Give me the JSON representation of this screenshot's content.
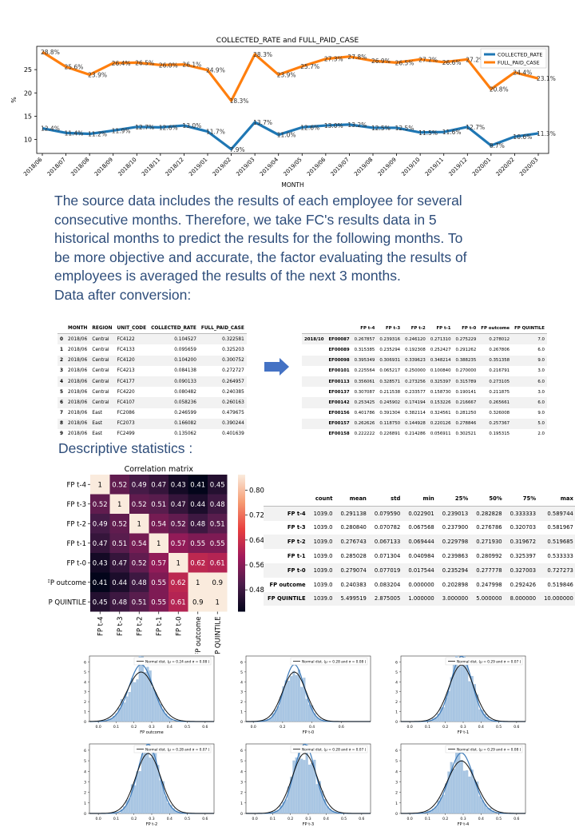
{
  "line_chart": {
    "chart_data": {
      "type": "line",
      "title": "COLLECTED_RATE and FULL_PAID_CASE",
      "xlabel": "MONTH",
      "ylabel": "%",
      "ylim": [
        7,
        30
      ],
      "yticks": [
        10,
        15,
        20,
        25
      ],
      "legend_placement": "top-right",
      "categories": [
        "2018/06",
        "2018/07",
        "2018/08",
        "2018/09",
        "2018/10",
        "2018/11",
        "2018/12",
        "2019/01",
        "2019/02",
        "2019/03",
        "2019/04",
        "2019/05",
        "2019/06",
        "2019/07",
        "2019/08",
        "2019/09",
        "2019/10",
        "2019/11",
        "2019/12",
        "2020/01",
        "2020/02",
        "2020/03"
      ],
      "series": [
        {
          "name": "COLLECTED_RATE",
          "color": "#1f77b4",
          "values": [
            12.4,
            11.4,
            11.2,
            11.9,
            12.7,
            12.6,
            13.0,
            11.7,
            7.9,
            13.7,
            11.0,
            12.6,
            13.0,
            13.2,
            12.5,
            12.5,
            11.5,
            11.6,
            12.7,
            8.7,
            10.6,
            11.3
          ],
          "labels": [
            "12.4%",
            "11.4%",
            "11.2%",
            "11.9%",
            "12.7%",
            "12.6%",
            "13.0%",
            "11.7%",
            "7.9%",
            "13.7%",
            "11.0%",
            "12.6%",
            "13.0%",
            "13.2%",
            "12.5%",
            "12.5%",
            "11.5%",
            "11.6%",
            "12.7%",
            "8.7%",
            "10.6%",
            "11.3%"
          ]
        },
        {
          "name": "FULL_PAID_CASE",
          "color": "#ff7f0e",
          "values": [
            28.8,
            25.6,
            23.9,
            26.4,
            26.5,
            26.0,
            26.1,
            24.9,
            18.3,
            28.3,
            23.9,
            25.7,
            27.3,
            27.8,
            26.9,
            26.5,
            27.2,
            26.6,
            27.2,
            20.8,
            24.4,
            23.1
          ],
          "labels": [
            "28.8%",
            "25.6%",
            "23.9%",
            "26.4%",
            "26.5%",
            "26.0%",
            "26.1%",
            "24.9%",
            "18.3%",
            "28.3%",
            "23.9%",
            "25.7%",
            "27.3%",
            "27.8%",
            "26.9%",
            "26.5%",
            "27.2%",
            "26.6%",
            "27.2%",
            "20.8%",
            "24.4%",
            "23.1%"
          ]
        }
      ]
    }
  },
  "paragraph_lines": [
    "The source data includes the results of each employee for several",
    "consecutive months. Therefore, we take FC's results data in 5",
    "historical months to predict the results for the following months. To",
    "be more objective and accurate, the factor evaluating the results of",
    "employees is averaged the results of the next 3 months.",
    "Data after conversion:"
  ],
  "raw_table": {
    "columns": [
      "MONTH",
      "REGION",
      "UNIT_CODE",
      "COLLECTED_RATE",
      "FULL_PAID_CASE"
    ],
    "rows": [
      {
        "idx": "0",
        "cells": [
          "2018/06",
          "Central",
          "FC4122",
          "0.104527",
          "0.322581"
        ]
      },
      {
        "idx": "1",
        "cells": [
          "2018/06",
          "Central",
          "FC4133",
          "0.095659",
          "0.325203"
        ]
      },
      {
        "idx": "2",
        "cells": [
          "2018/06",
          "Central",
          "FC4120",
          "0.104200",
          "0.300752"
        ]
      },
      {
        "idx": "3",
        "cells": [
          "2018/06",
          "Central",
          "FC4213",
          "0.084138",
          "0.272727"
        ]
      },
      {
        "idx": "4",
        "cells": [
          "2018/06",
          "Central",
          "FC4177",
          "0.090133",
          "0.264957"
        ]
      },
      {
        "idx": "5",
        "cells": [
          "2018/06",
          "Central",
          "FC4220",
          "0.080482",
          "0.240385"
        ]
      },
      {
        "idx": "6",
        "cells": [
          "2018/06",
          "Central",
          "FC4107",
          "0.058236",
          "0.260163"
        ]
      },
      {
        "idx": "7",
        "cells": [
          "2018/06",
          "East",
          "FC2086",
          "0.246599",
          "0.479675"
        ]
      },
      {
        "idx": "8",
        "cells": [
          "2018/06",
          "East",
          "FC2073",
          "0.166082",
          "0.390244"
        ]
      },
      {
        "idx": "9",
        "cells": [
          "2018/06",
          "East",
          "FC2499",
          "0.135062",
          "0.401639"
        ]
      }
    ]
  },
  "converted_table": {
    "columns": [
      "",
      "",
      "FP t-4",
      "FP t-3",
      "FP t-2",
      "FP t-1",
      "FP t-0",
      "FP outcome",
      "FP QUINTILE"
    ],
    "rows": [
      {
        "group": "2018/10",
        "id": "EF00087",
        "cells": [
          "0.267857",
          "0.239316",
          "0.246120",
          "0.271310",
          "0.275229",
          "0.278012",
          "7.0"
        ]
      },
      {
        "group": "",
        "id": "EF00089",
        "cells": [
          "0.315385",
          "0.235294",
          "0.192308",
          "0.252427",
          "0.291262",
          "0.267806",
          "6.0"
        ]
      },
      {
        "group": "",
        "id": "EF00098",
        "cells": [
          "0.395349",
          "0.306931",
          "0.339623",
          "0.348214",
          "0.388235",
          "0.351358",
          "9.0"
        ]
      },
      {
        "group": "",
        "id": "EF00101",
        "cells": [
          "0.225564",
          "0.065217",
          "0.250000",
          "0.100840",
          "0.270000",
          "0.216791",
          "3.0"
        ]
      },
      {
        "group": "",
        "id": "EF00113",
        "cells": [
          "0.356061",
          "0.328571",
          "0.273256",
          "0.325397",
          "0.315789",
          "0.273105",
          "6.0"
        ]
      },
      {
        "group": "",
        "id": "EF00137",
        "cells": [
          "0.307087",
          "0.211538",
          "0.233577",
          "0.158730",
          "0.190141",
          "0.211875",
          "3.0"
        ]
      },
      {
        "group": "",
        "id": "EF00142",
        "cells": [
          "0.253425",
          "0.245902",
          "0.174194",
          "0.153226",
          "0.216667",
          "0.265661",
          "6.0"
        ]
      },
      {
        "group": "",
        "id": "EF00156",
        "cells": [
          "0.401786",
          "0.391304",
          "0.382114",
          "0.324561",
          "0.281250",
          "0.326008",
          "9.0"
        ]
      },
      {
        "group": "",
        "id": "EF00157",
        "cells": [
          "0.262626",
          "0.118750",
          "0.144928",
          "0.220126",
          "0.278846",
          "0.257367",
          "5.0"
        ]
      },
      {
        "group": "",
        "id": "EF00158",
        "cells": [
          "0.222222",
          "0.226891",
          "0.214286",
          "0.056911",
          "0.302521",
          "0.195315",
          "2.0"
        ]
      }
    ]
  },
  "arrow": {
    "color": "#4472c4"
  },
  "descriptive_heading": "Descriptive statistics :",
  "heatmap": {
    "chart_data": {
      "type": "heatmap",
      "title": "Correlation matrix",
      "labels": [
        "FP t-4",
        "FP t-3",
        "FP t-2",
        "FP t-1",
        "FP t-0",
        "FP outcome",
        "FP QUINTILE"
      ],
      "matrix": [
        [
          1,
          0.52,
          0.49,
          0.47,
          0.43,
          0.41,
          0.45
        ],
        [
          0.52,
          1,
          0.52,
          0.51,
          0.47,
          0.44,
          0.48
        ],
        [
          0.49,
          0.52,
          1,
          0.54,
          0.52,
          0.48,
          0.51
        ],
        [
          0.47,
          0.51,
          0.54,
          1,
          0.57,
          0.55,
          0.55
        ],
        [
          0.43,
          0.47,
          0.52,
          0.57,
          1,
          0.62,
          0.61
        ],
        [
          0.41,
          0.44,
          0.48,
          0.55,
          0.62,
          1,
          0.9
        ],
        [
          0.45,
          0.48,
          0.51,
          0.55,
          0.61,
          0.9,
          1
        ]
      ],
      "cell_labels": [
        [
          "1",
          "0.52",
          "0.49",
          "0.47",
          "0.43",
          "0.41",
          "0.45"
        ],
        [
          "0.52",
          "1",
          "0.52",
          "0.51",
          "0.47",
          "0.44",
          "0.48"
        ],
        [
          "0.49",
          "0.52",
          "1",
          "0.54",
          "0.52",
          "0.48",
          "0.51"
        ],
        [
          "0.47",
          "0.51",
          "0.54",
          "1",
          "0.57",
          "0.55",
          "0.55"
        ],
        [
          "0.43",
          "0.47",
          "0.52",
          "0.57",
          "1",
          "0.62",
          "0.61"
        ],
        [
          "0.41",
          "0.44",
          "0.48",
          "0.55",
          "0.62",
          "1",
          "0.9"
        ],
        [
          "0.45",
          "0.48",
          "0.51",
          "0.55",
          "0.61",
          "0.9",
          "1"
        ]
      ],
      "colorbar_ticks": [
        "0.80",
        "0.72",
        "0.64",
        "0.56",
        "0.48"
      ],
      "colorbar_values": [
        0.8,
        0.72,
        0.64,
        0.56,
        0.48
      ],
      "colorbar_range": [
        0.41,
        0.85
      ],
      "colormap": [
        "#03051a",
        "#4c1d4b",
        "#a11a5b",
        "#e83f3f",
        "#f69c73",
        "#faebdd"
      ]
    }
  },
  "stats_table": {
    "columns": [
      "",
      "count",
      "mean",
      "std",
      "min",
      "25%",
      "50%",
      "75%",
      "max"
    ],
    "rows": [
      {
        "label": "FP t-4",
        "cells": [
          "1039.0",
          "0.291138",
          "0.079590",
          "0.022901",
          "0.239013",
          "0.282828",
          "0.333333",
          "0.589744"
        ]
      },
      {
        "label": "FP t-3",
        "cells": [
          "1039.0",
          "0.280840",
          "0.070782",
          "0.067568",
          "0.237900",
          "0.276786",
          "0.320703",
          "0.581967"
        ]
      },
      {
        "label": "FP t-2",
        "cells": [
          "1039.0",
          "0.276743",
          "0.067133",
          "0.069444",
          "0.229798",
          "0.271930",
          "0.319672",
          "0.519685"
        ]
      },
      {
        "label": "FP t-1",
        "cells": [
          "1039.0",
          "0.285028",
          "0.071304",
          "0.040984",
          "0.239863",
          "0.280992",
          "0.325397",
          "0.533333"
        ]
      },
      {
        "label": "FP t-0",
        "cells": [
          "1039.0",
          "0.279074",
          "0.077019",
          "0.017544",
          "0.235294",
          "0.277778",
          "0.327003",
          "0.727273"
        ]
      },
      {
        "label": "FP outcome",
        "cells": [
          "1039.0",
          "0.240383",
          "0.083204",
          "0.000000",
          "0.202898",
          "0.247998",
          "0.292426",
          "0.519846"
        ]
      },
      {
        "label": "FP QUINTILE",
        "cells": [
          "1039.0",
          "5.499519",
          "2.875005",
          "1.000000",
          "3.000000",
          "5.000000",
          "8.000000",
          "10.000000"
        ]
      }
    ]
  },
  "histograms": {
    "chart_data": [
      {
        "type": "bar",
        "xlabel": "FP outcome",
        "legend": "Normal dist. (μ = 0.24 and σ = 0.08 )",
        "mu": 0.24,
        "sigma": 0.08,
        "xlim": [
          -0.05,
          0.65
        ],
        "xticks": [
          "0.0",
          "0.1",
          "0.2",
          "0.3",
          "0.4",
          "0.5",
          "0.6"
        ],
        "ylim": [
          0,
          6.6
        ],
        "yticks": [
          "0",
          "1",
          "2",
          "3",
          "4",
          "5",
          "6"
        ]
      },
      {
        "type": "bar",
        "xlabel": "FP t-0",
        "legend": "Normal dist. (μ = 0.28 and σ = 0.08 )",
        "mu": 0.28,
        "sigma": 0.08,
        "xlim": [
          -0.05,
          0.8
        ],
        "xticks": [
          "0.0",
          "0.2",
          "0.4",
          "0.6"
        ],
        "ylim": [
          0,
          6.6
        ],
        "yticks": [
          "0",
          "1",
          "2",
          "3",
          "4",
          "5",
          "6"
        ]
      },
      {
        "type": "bar",
        "xlabel": "FP t-1",
        "legend": "Normal dist. (μ = 0.29 and σ = 0.07 )",
        "mu": 0.29,
        "sigma": 0.07,
        "xlim": [
          -0.05,
          0.65
        ],
        "xticks": [
          "0.0",
          "0.1",
          "0.2",
          "0.3",
          "0.4",
          "0.5",
          "0.6"
        ],
        "ylim": [
          0,
          6.6
        ],
        "yticks": [
          "0",
          "1",
          "2",
          "3",
          "4",
          "5",
          "6"
        ]
      },
      {
        "type": "bar",
        "xlabel": "FP t-2",
        "legend": "Normal dist. (μ = 0.28 and σ = 0.07 )",
        "mu": 0.28,
        "sigma": 0.07,
        "xlim": [
          -0.05,
          0.65
        ],
        "xticks": [
          "0.0",
          "0.1",
          "0.2",
          "0.3",
          "0.4",
          "0.5",
          "0.6"
        ],
        "ylim": [
          0,
          6.6
        ],
        "yticks": [
          "0",
          "1",
          "2",
          "3",
          "4",
          "5",
          "6"
        ]
      },
      {
        "type": "bar",
        "xlabel": "FP t-3",
        "legend": "Normal dist. (μ = 0.28 and σ = 0.07 )",
        "mu": 0.28,
        "sigma": 0.07,
        "xlim": [
          -0.05,
          0.65
        ],
        "xticks": [
          "0.0",
          "0.1",
          "0.2",
          "0.3",
          "0.4",
          "0.5",
          "0.6"
        ],
        "ylim": [
          0,
          6.6
        ],
        "yticks": [
          "0",
          "1",
          "2",
          "3",
          "4",
          "5",
          "6"
        ]
      },
      {
        "type": "bar",
        "xlabel": "FP t-4",
        "legend": "Normal dist. (μ = 0.29 and σ = 0.08 )",
        "mu": 0.29,
        "sigma": 0.08,
        "xlim": [
          -0.05,
          0.65
        ],
        "xticks": [
          "0.0",
          "0.1",
          "0.2",
          "0.3",
          "0.4",
          "0.5",
          "0.6"
        ],
        "ylim": [
          0,
          6.6
        ],
        "yticks": [
          "0",
          "1",
          "2",
          "3",
          "4",
          "5",
          "6"
        ]
      }
    ]
  }
}
